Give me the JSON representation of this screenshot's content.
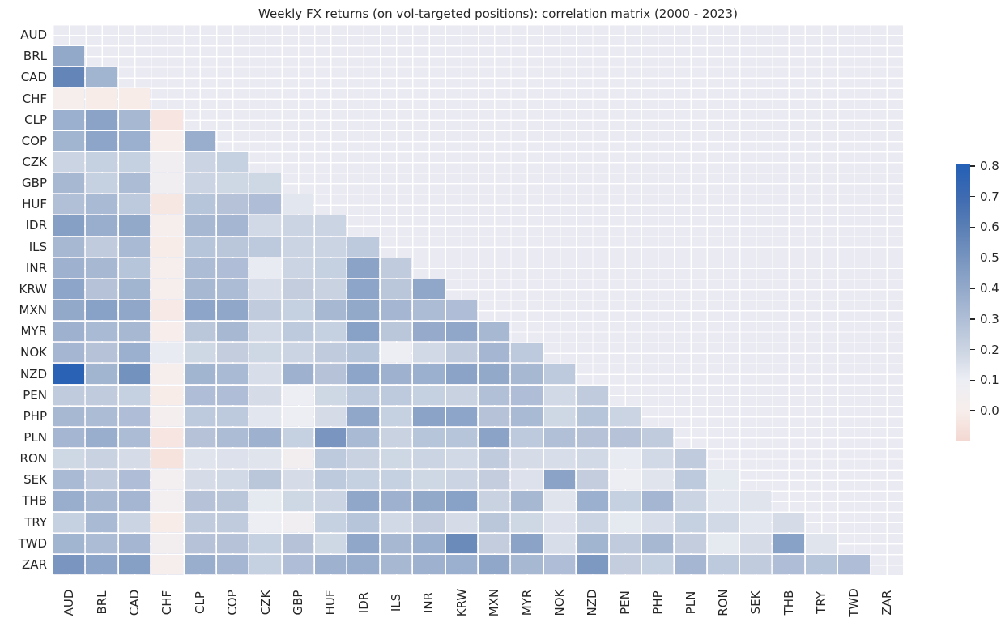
{
  "title": "Weekly FX returns (on vol-targeted positions): correlation matrix (2000 - 2023)",
  "chart_data": {
    "type": "heatmap",
    "subtype": "correlation-matrix-lower-triangle",
    "title": "Weekly FX returns (on vol-targeted positions): correlation matrix (2000 - 2023)",
    "categories": [
      "AUD",
      "BRL",
      "CAD",
      "CHF",
      "CLP",
      "COP",
      "CZK",
      "GBP",
      "HUF",
      "IDR",
      "ILS",
      "INR",
      "KRW",
      "MXN",
      "MYR",
      "NOK",
      "NZD",
      "PEN",
      "PHP",
      "PLN",
      "RON",
      "SEK",
      "THB",
      "TRY",
      "TWD",
      "ZAR"
    ],
    "values": [
      [],
      [
        0.4
      ],
      [
        0.57,
        0.35
      ],
      [
        0.01,
        -0.01,
        -0.01
      ],
      [
        0.37,
        0.43,
        0.33,
        -0.04
      ],
      [
        0.35,
        0.42,
        0.37,
        0.0,
        0.38
      ],
      [
        0.2,
        0.22,
        0.22,
        0.06,
        0.2,
        0.22
      ],
      [
        0.33,
        0.22,
        0.31,
        0.06,
        0.2,
        0.19,
        0.19
      ],
      [
        0.29,
        0.32,
        0.25,
        -0.03,
        0.27,
        0.28,
        0.3,
        0.13
      ],
      [
        0.45,
        0.38,
        0.4,
        0.01,
        0.33,
        0.34,
        0.18,
        0.2,
        0.2
      ],
      [
        0.33,
        0.24,
        0.32,
        -0.01,
        0.27,
        0.26,
        0.25,
        0.2,
        0.2,
        0.25
      ],
      [
        0.36,
        0.33,
        0.27,
        0.02,
        0.31,
        0.3,
        0.11,
        0.2,
        0.22,
        0.43,
        0.24
      ],
      [
        0.42,
        0.28,
        0.35,
        0.02,
        0.33,
        0.31,
        0.16,
        0.23,
        0.21,
        0.42,
        0.26,
        0.41
      ],
      [
        0.4,
        0.44,
        0.41,
        -0.02,
        0.42,
        0.41,
        0.24,
        0.22,
        0.33,
        0.4,
        0.34,
        0.31,
        0.3
      ],
      [
        0.36,
        0.32,
        0.33,
        0.0,
        0.26,
        0.33,
        0.18,
        0.25,
        0.22,
        0.44,
        0.26,
        0.39,
        0.41,
        0.33
      ],
      [
        0.34,
        0.28,
        0.37,
        0.11,
        0.19,
        0.23,
        0.19,
        0.2,
        0.24,
        0.27,
        0.1,
        0.18,
        0.24,
        0.34,
        0.25
      ],
      [
        0.78,
        0.35,
        0.51,
        0.02,
        0.35,
        0.32,
        0.16,
        0.36,
        0.28,
        0.42,
        0.36,
        0.37,
        0.43,
        0.4,
        0.33,
        0.25
      ],
      [
        0.24,
        0.24,
        0.22,
        -0.01,
        0.3,
        0.3,
        0.17,
        0.09,
        0.19,
        0.25,
        0.25,
        0.22,
        0.21,
        0.29,
        0.3,
        0.18,
        0.24
      ],
      [
        0.33,
        0.31,
        0.3,
        0.03,
        0.25,
        0.25,
        0.13,
        0.1,
        0.17,
        0.41,
        0.22,
        0.43,
        0.42,
        0.28,
        0.32,
        0.19,
        0.27,
        0.2
      ],
      [
        0.34,
        0.38,
        0.31,
        -0.04,
        0.28,
        0.31,
        0.36,
        0.22,
        0.49,
        0.32,
        0.21,
        0.27,
        0.27,
        0.43,
        0.25,
        0.29,
        0.28,
        0.28,
        0.24
      ],
      [
        0.19,
        0.21,
        0.17,
        -0.05,
        0.14,
        0.15,
        0.14,
        0.05,
        0.25,
        0.21,
        0.19,
        0.2,
        0.18,
        0.24,
        0.17,
        0.16,
        0.18,
        0.11,
        0.18,
        0.24
      ],
      [
        0.32,
        0.24,
        0.3,
        0.04,
        0.17,
        0.18,
        0.26,
        0.17,
        0.25,
        0.22,
        0.22,
        0.19,
        0.2,
        0.23,
        0.15,
        0.43,
        0.23,
        0.1,
        0.14,
        0.25,
        0.12
      ],
      [
        0.38,
        0.33,
        0.34,
        0.04,
        0.28,
        0.26,
        0.12,
        0.19,
        0.2,
        0.41,
        0.36,
        0.4,
        0.44,
        0.21,
        0.33,
        0.14,
        0.37,
        0.22,
        0.34,
        0.2,
        0.13,
        0.14
      ],
      [
        0.22,
        0.32,
        0.2,
        -0.01,
        0.24,
        0.24,
        0.09,
        0.06,
        0.22,
        0.27,
        0.18,
        0.23,
        0.17,
        0.26,
        0.19,
        0.15,
        0.2,
        0.12,
        0.16,
        0.22,
        0.18,
        0.13,
        0.17
      ],
      [
        0.35,
        0.31,
        0.34,
        0.05,
        0.28,
        0.28,
        0.22,
        0.28,
        0.19,
        0.41,
        0.33,
        0.37,
        0.54,
        0.23,
        0.43,
        0.16,
        0.35,
        0.24,
        0.33,
        0.23,
        0.12,
        0.17,
        0.44,
        0.14
      ],
      [
        0.49,
        0.42,
        0.45,
        0.02,
        0.38,
        0.34,
        0.22,
        0.3,
        0.36,
        0.38,
        0.33,
        0.36,
        0.37,
        0.41,
        0.33,
        0.3,
        0.48,
        0.23,
        0.22,
        0.34,
        0.25,
        0.24,
        0.3,
        0.27,
        0.3
      ]
    ],
    "mask": "diagonal and upper triangle hidden (background shows through)",
    "colorbar": {
      "tick_labels": [
        "0.8",
        "0.7",
        "0.6",
        "0.5",
        "0.4",
        "0.3",
        "0.2",
        "0.1",
        "0.0"
      ],
      "tick_values": [
        0.8,
        0.7,
        0.6,
        0.5,
        0.4,
        0.3,
        0.2,
        0.1,
        0.0
      ],
      "vmax": 0.8,
      "vmin": -0.1,
      "position": "right"
    },
    "colormap_stops": [
      [
        -0.1,
        "#f4d7d1"
      ],
      [
        0.0,
        "#f7eeeb"
      ],
      [
        0.1,
        "#eceef4"
      ],
      [
        0.2,
        "#cbd4e2"
      ],
      [
        0.3,
        "#afbed6"
      ],
      [
        0.4,
        "#93a9ca"
      ],
      [
        0.5,
        "#7794bf"
      ],
      [
        0.6,
        "#5a7fb5"
      ],
      [
        0.7,
        "#3e6ab1"
      ],
      [
        0.8,
        "#2561b6"
      ]
    ],
    "layout_hints": {
      "grid": true,
      "background_color": "#eaeaf2",
      "grid_color": "#ffffff",
      "text_color": "#262626",
      "x_tick_rotation_deg": 90,
      "xlabel": "",
      "ylabel": ""
    }
  }
}
